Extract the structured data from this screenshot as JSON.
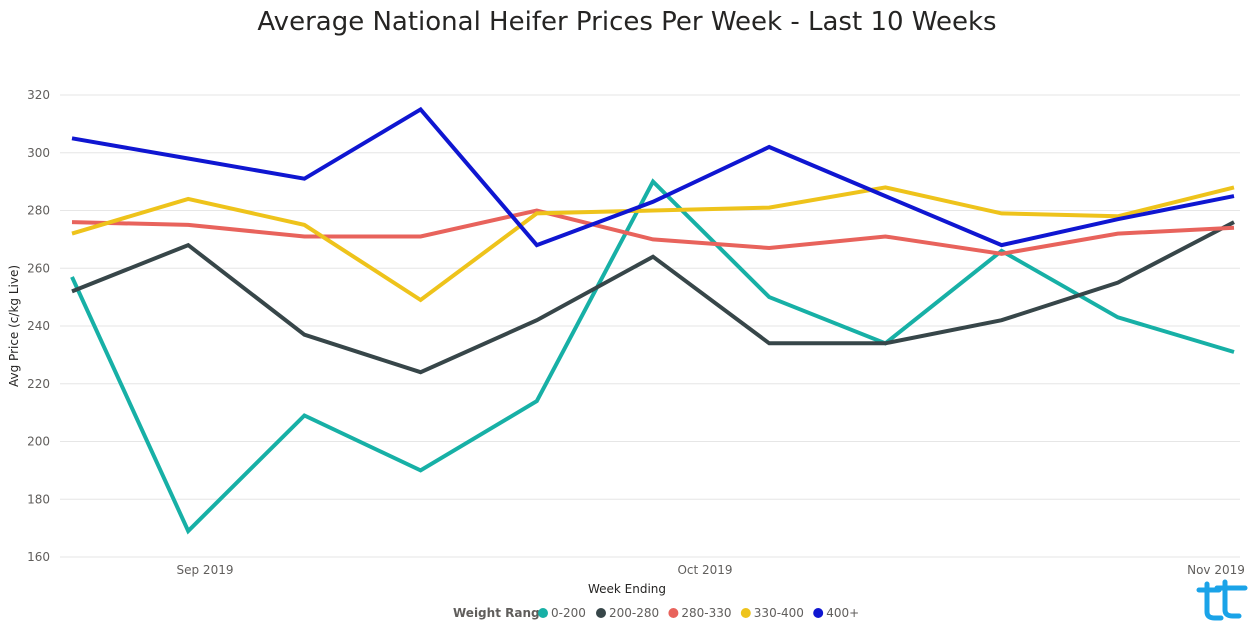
{
  "chart_data": {
    "type": "line",
    "title": "Average National Heifer Prices Per Week - Last 10 Weeks",
    "xlabel": "Week Ending",
    "ylabel": "Avg Price (c/kg Live)",
    "x_tick_labels": [
      "Sep 2019",
      "Oct 2019",
      "Nov 2019"
    ],
    "y_ticks": [
      160,
      180,
      200,
      220,
      240,
      260,
      280,
      300,
      320
    ],
    "ylim": [
      160,
      320
    ],
    "grid": true,
    "legend_title": "Weight Range",
    "legend_position": "bottom-center",
    "series": [
      {
        "name": "0-200",
        "color": "#17b0a6",
        "values": [
          257,
          169,
          209,
          190,
          214,
          290,
          250,
          234,
          266,
          243,
          231
        ]
      },
      {
        "name": "200-280",
        "color": "#374649",
        "values": [
          252,
          268,
          237,
          224,
          242,
          264,
          234,
          234,
          242,
          255,
          276
        ]
      },
      {
        "name": "280-330",
        "color": "#e8635c",
        "values": [
          276,
          275,
          271,
          271,
          280,
          270,
          267,
          271,
          265,
          272,
          274
        ]
      },
      {
        "name": "330-400",
        "color": "#eec31b",
        "values": [
          272,
          284,
          275,
          249,
          279,
          280,
          281,
          288,
          279,
          278,
          288
        ]
      },
      {
        "name": "400+",
        "color": "#0f16d1",
        "values": [
          305,
          298,
          291,
          315,
          268,
          283,
          302,
          285,
          268,
          277,
          285
        ]
      }
    ]
  },
  "logo": {
    "name": "brand-logo",
    "color": "#1aa3e8"
  }
}
